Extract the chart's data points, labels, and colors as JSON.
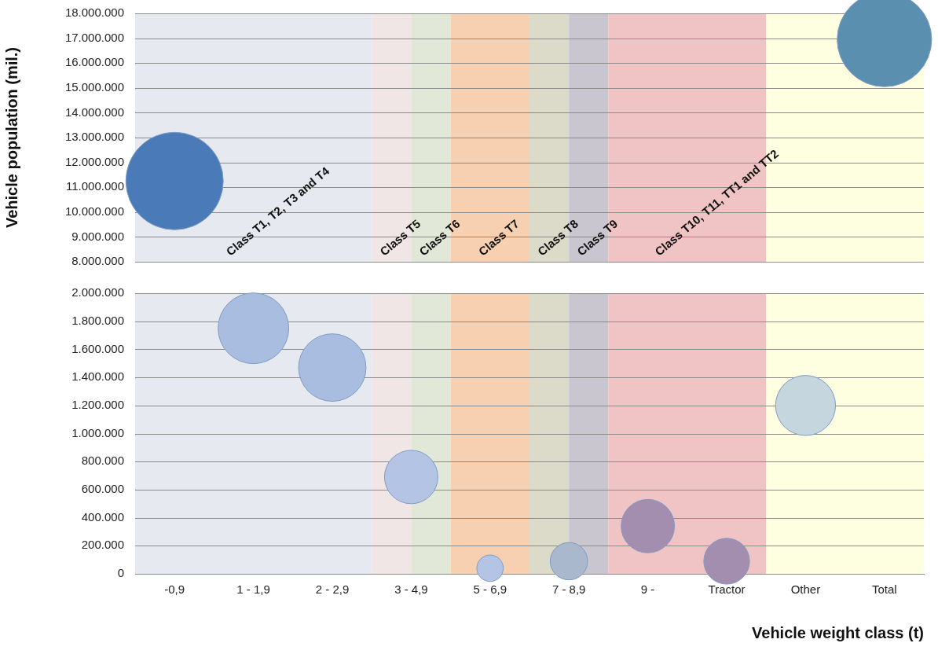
{
  "chart_data": [
    {
      "type": "bubble",
      "ylabel": "Vehicle population (mil.)",
      "tick_labels": "y",
      "grid": "y",
      "categories": [
        "-0,9",
        "1 - 1,9",
        "2 - 2,9",
        "3 - 4,9",
        "5 - 6,9",
        "7 - 8,9",
        "9 -",
        "Tractor",
        "Other",
        "Total"
      ],
      "values": [
        11250000,
        null,
        null,
        null,
        null,
        null,
        null,
        null,
        null,
        16950000
      ],
      "sizes": [
        1,
        null,
        null,
        null,
        null,
        null,
        null,
        null,
        null,
        0.94
      ],
      "colors": [
        "#4a7ab8",
        null,
        null,
        null,
        null,
        null,
        null,
        null,
        null,
        "#5b8fb0"
      ],
      "ylim": [
        8000000,
        18000000
      ],
      "yticks": [
        {
          "value": 8000000,
          "label": "8.000.000"
        },
        {
          "value": 9000000,
          "label": "9.000.000"
        },
        {
          "value": 10000000,
          "label": "10.000.000"
        },
        {
          "value": 11000000,
          "label": "11.000.000"
        },
        {
          "value": 12000000,
          "label": "12.000.000"
        },
        {
          "value": 13000000,
          "label": "13.000.000"
        },
        {
          "value": 14000000,
          "label": "14.000.000"
        },
        {
          "value": 15000000,
          "label": "15.000.000"
        },
        {
          "value": 16000000,
          "label": "16.000.000"
        },
        {
          "value": 17000000,
          "label": "17.000.000"
        },
        {
          "value": 18000000,
          "label": "18.000.000"
        }
      ],
      "bands": [
        {
          "axis": "x",
          "from": "-0,9",
          "to": "2 - 2,9",
          "label": "Class T1, T2, T3 and T4",
          "color": "#e6e9ef"
        },
        {
          "axis": "x",
          "from": "3 - 4,9",
          "to": "3 - 4,9",
          "label": "Class T5",
          "color": "#f1e6e6"
        },
        {
          "axis": "x",
          "from": "3 - 4,9",
          "to": "3 - 4,9",
          "label": "Class T6",
          "color": "#e2e8d8"
        },
        {
          "axis": "x",
          "from": "5 - 6,9",
          "to": "5 - 6,9",
          "label": "Class T7",
          "color": "#f6d0b0"
        },
        {
          "axis": "x",
          "from": "7 - 8,9",
          "to": "7 - 8,9",
          "label": "Class T8",
          "color": "#dcdac8"
        },
        {
          "axis": "x",
          "from": "7 - 8,9",
          "to": "7 - 8,9",
          "label": "Class T9",
          "color": "#cac6d0"
        },
        {
          "axis": "x",
          "from": "9 -",
          "to": "Tractor",
          "label": "Class T10, T11, TT1 and TT2",
          "color": "#f0c4c4"
        },
        {
          "axis": "x",
          "from": "Other",
          "to": "Total",
          "color": "#fefee0"
        }
      ]
    },
    {
      "type": "bubble",
      "xlabel": "Vehicle weight class (t)",
      "grid": "y",
      "categories": [
        "-0,9",
        "1 - 1,9",
        "2 - 2,9",
        "3 - 4,9",
        "5 - 6,9",
        "7 - 8,9",
        "9 -",
        "Tractor",
        "Other",
        "Total"
      ],
      "values": [
        null,
        1750000,
        1470000,
        690000,
        40000,
        90000,
        340000,
        90000,
        1200000,
        null
      ],
      "sizes": [
        null,
        1,
        0.91,
        0.57,
        0.14,
        0.28,
        0.57,
        0.42,
        0.72,
        null
      ],
      "colors": [
        null,
        "#a9bde0",
        "#a9bde0",
        "#b4c4e4",
        "#b4c4e4",
        "#a9b8cc",
        "#a48eb0",
        "#a48eb0",
        "#c5d6de",
        null
      ],
      "ylim": [
        0,
        2000000
      ],
      "yticks": [
        0,
        {
          "value": 200000,
          "label": "200.000"
        },
        {
          "value": 400000,
          "label": "400.000"
        },
        {
          "value": 600000,
          "label": "600.000"
        },
        {
          "value": 800000,
          "label": "800.000"
        },
        {
          "value": 1000000,
          "label": "1.000.000"
        },
        {
          "value": 1200000,
          "label": "1.200.000"
        },
        {
          "value": 1400000,
          "label": "1.400.000"
        },
        {
          "value": 1600000,
          "label": "1.600.000"
        },
        {
          "value": 1800000,
          "label": "1.800.000"
        },
        {
          "value": 2000000,
          "label": "2.000.000"
        }
      ],
      "bands": [
        {
          "axis": "x",
          "from": "-0,9",
          "to": "2 - 2,9",
          "color": "#e6e9ef"
        },
        {
          "axis": "x",
          "from": "3 - 4,9",
          "to": "3 - 4,9",
          "color": "#f1e6e6"
        },
        {
          "axis": "x",
          "from": "3 - 4,9",
          "to": "3 - 4,9",
          "color": "#e2e8d8"
        },
        {
          "axis": "x",
          "from": "5 - 6,9",
          "to": "5 - 6,9",
          "color": "#f6d0b0"
        },
        {
          "axis": "x",
          "from": "7 - 8,9",
          "to": "7 - 8,9",
          "color": "#dcdac8"
        },
        {
          "axis": "x",
          "from": "7 - 8,9",
          "to": "7 - 8,9",
          "color": "#cac6d0"
        },
        {
          "axis": "x",
          "from": "9 -",
          "to": "Tractor",
          "color": "#f0c4c4"
        },
        {
          "axis": "x",
          "from": "Other",
          "to": "Total",
          "color": "#fefee0"
        }
      ]
    }
  ]
}
